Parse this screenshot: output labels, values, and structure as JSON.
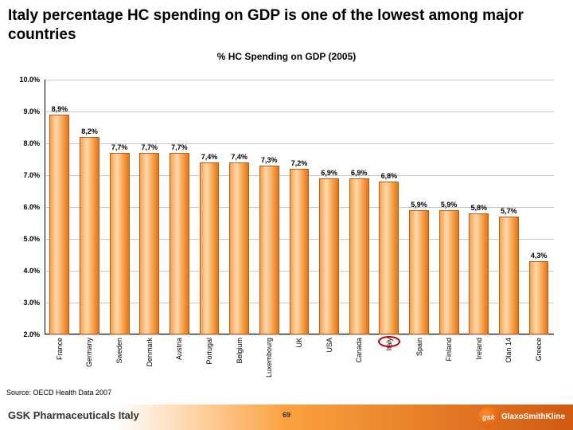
{
  "title": "Italy percentage HC spending on GDP is one of the lowest among major countries",
  "chart": {
    "type": "bar",
    "title": "% HC Spending on GDP (2005)",
    "ymin": 2.0,
    "ymax": 10.0,
    "ytick_step": 1.0,
    "ytick_suffix": ".0%",
    "gridline_color": "#c8c8c8",
    "axis_color": "#000000",
    "bar_gradient": [
      "#f6a24a",
      "#ffd9b0",
      "#f6a24a",
      "#e0741a"
    ],
    "bar_border": "#c05a10",
    "label_fontsize": 9,
    "title_fontsize": 12,
    "categories": [
      "France",
      "Germany",
      "Sweden",
      "Denmark",
      "Austria",
      "Portugal",
      "Belgium",
      "Luxembourg",
      "UK",
      "USA",
      "Canada",
      "Italy",
      "Spain",
      "Finland",
      "Ireland",
      "Olan 14",
      "Greece"
    ],
    "values": [
      8.9,
      8.2,
      7.7,
      7.7,
      7.7,
      7.4,
      7.4,
      7.3,
      7.2,
      6.9,
      6.9,
      6.8,
      5.9,
      5.9,
      5.8,
      5.7,
      4.3
    ],
    "value_labels": [
      "8,9%",
      "8,2%",
      "7,7%",
      "7,7%",
      "7,7%",
      "7,4%",
      "7,4%",
      "7,3%",
      "7,2%",
      "6,9%",
      "6,9%",
      "6,8%",
      "5,9%",
      "5,9%",
      "5,8%",
      "5,7%",
      "4,3%"
    ],
    "highlight_index": 11,
    "highlight_color": "#c00000"
  },
  "source": "Source: OECD Health Data 2007",
  "footer": {
    "org": "GSK Pharmaceuticals Italy",
    "page": "69",
    "logo_badge": "gsk",
    "logo_line1": "GlaxoSmithKline"
  }
}
